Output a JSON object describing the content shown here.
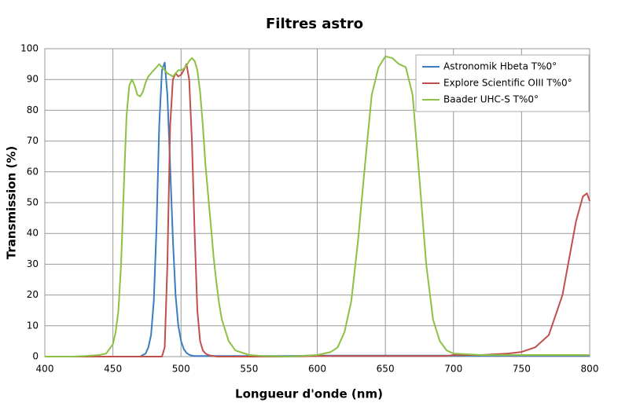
{
  "chart_data": {
    "type": "line",
    "title": "Filtres astro",
    "xlabel": "Longueur d'onde (nm)",
    "ylabel": "Transmission (%)",
    "x": [
      400,
      410,
      420,
      430,
      440,
      445,
      450,
      452,
      454,
      456,
      458,
      460,
      462,
      464,
      466,
      468,
      470,
      472,
      474,
      476,
      478,
      480,
      482,
      484,
      486,
      488,
      490,
      492,
      494,
      496,
      498,
      500,
      502,
      504,
      506,
      508,
      510,
      512,
      514,
      516,
      518,
      520,
      522,
      524,
      526,
      528,
      530,
      535,
      540,
      550,
      560,
      580,
      600,
      610,
      615,
      620,
      625,
      630,
      635,
      640,
      645,
      650,
      655,
      660,
      665,
      670,
      675,
      680,
      685,
      690,
      695,
      700,
      720,
      740,
      750,
      760,
      770,
      780,
      785,
      790,
      795,
      798,
      800
    ],
    "series": [
      {
        "name": "Astronomik Hbeta T%0°",
        "color": "#3b7dbf",
        "values": [
          0,
          0,
          0,
          0,
          0,
          0,
          0,
          0,
          0,
          0,
          0,
          0,
          0,
          0,
          0,
          0,
          0,
          0.5,
          1,
          3,
          7,
          18,
          42,
          75,
          93,
          95.5,
          85,
          62,
          38,
          20,
          10,
          5,
          2.5,
          1.2,
          0.6,
          0.3,
          0.2,
          0.2,
          0.2,
          0.2,
          0.2,
          0.2,
          0.2,
          0.2,
          0.2,
          0.2,
          0.2,
          0.2,
          0.2,
          0.2,
          0.2,
          0.2,
          0.3,
          0.3,
          0.3,
          0.3,
          0.3,
          0.3,
          0.3,
          0.3,
          0.3,
          0.3,
          0.3,
          0.3,
          0.3,
          0.3,
          0.3,
          0.3,
          0.3,
          0.3,
          0.3,
          0.3,
          0.3,
          0.3,
          0.3,
          0.3,
          0.3,
          0.3,
          0.3,
          0.3,
          0.3,
          0.3,
          0.3
        ]
      },
      {
        "name": "Explore Scientific OIII T%0°",
        "color": "#c0504d",
        "values": [
          0,
          0,
          0,
          0,
          0,
          0,
          0,
          0,
          0,
          0,
          0,
          0,
          0,
          0,
          0,
          0,
          0,
          0,
          0,
          0,
          0,
          0,
          0,
          0,
          0,
          3,
          30,
          75,
          90,
          92,
          91,
          91.5,
          93,
          95,
          90,
          70,
          40,
          15,
          5,
          2,
          1,
          0.5,
          0.3,
          0.2,
          0,
          0,
          0,
          0,
          0,
          0,
          0,
          0,
          0.2,
          0.2,
          0.2,
          0.2,
          0.2,
          0.2,
          0.2,
          0.2,
          0.2,
          0.2,
          0.2,
          0.2,
          0.2,
          0.2,
          0.2,
          0.2,
          0.2,
          0.2,
          0.2,
          0.5,
          0.5,
          1,
          1.5,
          3,
          7,
          20,
          32,
          44,
          52,
          53,
          50.5
        ]
      },
      {
        "name": "Baader UHC-S T%0°",
        "color": "#8dc044",
        "values": [
          0,
          0,
          0,
          0.2,
          0.5,
          1,
          4,
          8,
          15,
          30,
          55,
          78,
          88,
          90,
          88,
          85,
          84.5,
          86,
          89,
          91,
          92,
          93,
          94,
          95,
          94,
          93,
          92,
          91.5,
          91,
          92,
          93,
          93,
          93.5,
          94.5,
          96,
          97,
          96,
          93,
          86,
          75,
          62,
          52,
          42,
          32,
          24,
          17,
          12,
          5,
          2,
          0.5,
          0.2,
          0,
          0.5,
          1.5,
          3,
          8,
          18,
          38,
          62,
          85,
          94,
          97.5,
          97,
          95,
          94,
          85,
          58,
          30,
          12,
          5,
          2,
          1,
          0.5,
          0.5,
          0.5,
          0.5,
          0.5,
          0.5,
          0.5,
          0.5,
          0.5,
          0.5,
          0.5
        ]
      }
    ],
    "xlim": [
      400,
      800
    ],
    "xticks": [
      400,
      450,
      500,
      550,
      600,
      650,
      700,
      750,
      800
    ],
    "ylim": [
      0,
      100
    ],
    "yticks": [
      0,
      10,
      20,
      30,
      40,
      50,
      60,
      70,
      80,
      90,
      100
    ],
    "grid": true,
    "legend": "upper right"
  }
}
